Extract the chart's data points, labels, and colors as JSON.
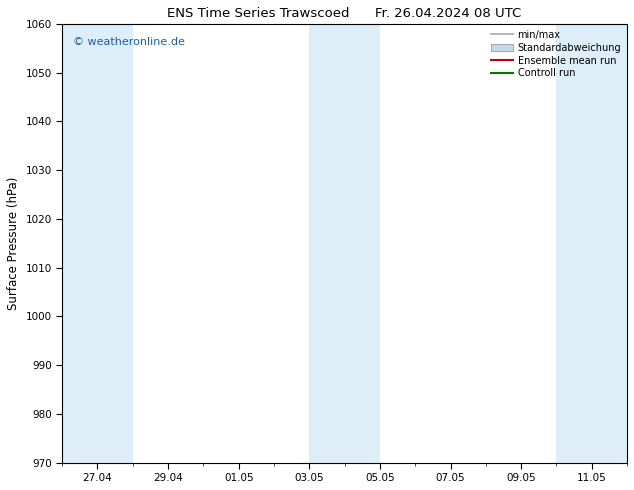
{
  "title_left": "ENS Time Series Trawscoed",
  "title_right": "Fr. 26.04.2024 08 UTC",
  "ylabel": "Surface Pressure (hPa)",
  "ylim": [
    970,
    1060
  ],
  "yticks": [
    970,
    980,
    990,
    1000,
    1010,
    1020,
    1030,
    1040,
    1050,
    1060
  ],
  "x_tick_labels": [
    "27.04",
    "29.04",
    "01.05",
    "03.05",
    "05.05",
    "07.05",
    "09.05",
    "11.05"
  ],
  "x_tick_positions_days": [
    1,
    3,
    5,
    7,
    9,
    11,
    13,
    15
  ],
  "xlim": [
    0,
    16
  ],
  "shaded_bands": [
    {
      "x_start_day": 0.0,
      "x_end_day": 2.0
    },
    {
      "x_start_day": 7.0,
      "x_end_day": 9.0
    },
    {
      "x_start_day": 14.0,
      "x_end_day": 16.0
    }
  ],
  "shaded_color": "#ddeef8",
  "background_color": "#ffffff",
  "watermark": "© weatheronline.de",
  "watermark_color": "#1a5faa",
  "legend_entries": [
    {
      "label": "min/max",
      "color": "#aaaaaa",
      "lw": 1.2,
      "linestyle": "-"
    },
    {
      "label": "Standardabweichung",
      "color": "#c5d9e8",
      "lw": 8,
      "linestyle": "-"
    },
    {
      "label": "Ensemble mean run",
      "color": "#cc0000",
      "lw": 1.5,
      "linestyle": "-"
    },
    {
      "label": "Controll run",
      "color": "#007700",
      "lw": 1.5,
      "linestyle": "-"
    }
  ],
  "title_fontsize": 9.5,
  "tick_fontsize": 7.5,
  "label_fontsize": 8.5,
  "watermark_fontsize": 8.0,
  "legend_fontsize": 7.0
}
